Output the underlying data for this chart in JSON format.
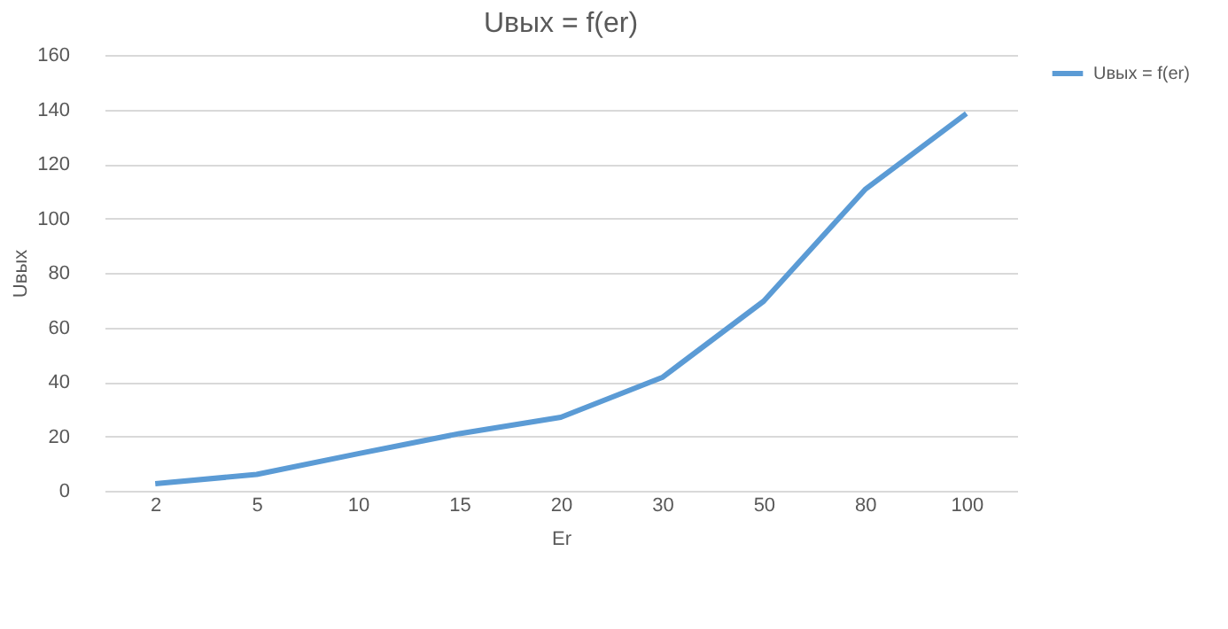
{
  "chart_data": {
    "type": "line",
    "title": "Uвых = f(er)",
    "xlabel": "Er",
    "ylabel": "Uвых",
    "categories": [
      "2",
      "5",
      "10",
      "15",
      "20",
      "30",
      "50",
      "80",
      "100"
    ],
    "series": [
      {
        "name": "Uвых = f(er)",
        "color": "#5b9bd5",
        "values": [
          2.6,
          6,
          13.6,
          21,
          27,
          41.6,
          69.6,
          110.6,
          138.5
        ]
      }
    ],
    "ylim": [
      0,
      160
    ],
    "yticks": [
      0,
      20,
      40,
      60,
      80,
      100,
      120,
      140,
      160
    ],
    "grid": "y",
    "legend": "right",
    "marker": "none",
    "line_style": "solid"
  }
}
